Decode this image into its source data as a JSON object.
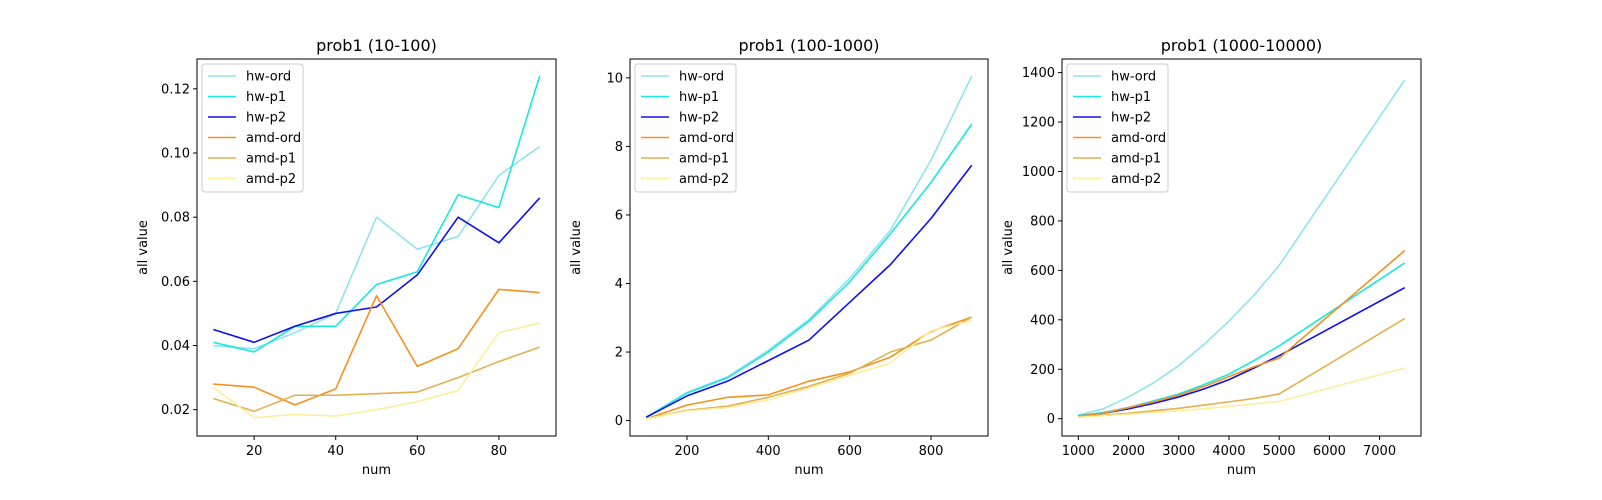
{
  "chart_data": [
    {
      "type": "line",
      "title": "prob1 (10-100)",
      "xlabel": "num",
      "ylabel": "all value",
      "xlim": [
        6,
        94
      ],
      "ylim": [
        0.0118,
        0.1293
      ],
      "xticks": [
        20,
        40,
        60,
        80
      ],
      "yticks": [
        0.02,
        0.04,
        0.06,
        0.08,
        0.1,
        0.12
      ],
      "ytick_labels": [
        "0.02",
        "0.04",
        "0.06",
        "0.08",
        "0.10",
        "0.12"
      ],
      "grid": false,
      "legend": "top-left",
      "x": [
        10,
        20,
        30,
        40,
        50,
        60,
        70,
        80,
        90
      ],
      "series": [
        {
          "name": "hw-ord",
          "color": "#8fe3ef",
          "values": [
            0.04,
            0.039,
            0.044,
            0.05,
            0.08,
            0.07,
            0.074,
            0.093,
            0.102
          ]
        },
        {
          "name": "hw-p1",
          "color": "#1ae8e0",
          "values": [
            0.041,
            0.038,
            0.046,
            0.046,
            0.059,
            0.063,
            0.087,
            0.083,
            0.124
          ]
        },
        {
          "name": "hw-p2",
          "color": "#1010ee",
          "values": [
            0.045,
            0.041,
            0.046,
            0.05,
            0.052,
            0.062,
            0.08,
            0.072,
            0.086
          ]
        },
        {
          "name": "amd-ord",
          "color": "#f5921e",
          "values": [
            0.028,
            0.027,
            0.0215,
            0.0265,
            0.0555,
            0.0335,
            0.039,
            0.0575,
            0.0565
          ]
        },
        {
          "name": "amd-p1",
          "color": "#e3b050",
          "values": [
            0.0235,
            0.0195,
            0.0245,
            0.0245,
            0.025,
            0.0255,
            0.03,
            0.035,
            0.0395
          ]
        },
        {
          "name": "amd-p2",
          "color": "#fdee9c",
          "values": [
            0.027,
            0.0175,
            0.0185,
            0.018,
            0.02,
            0.0225,
            0.026,
            0.044,
            0.047
          ]
        }
      ]
    },
    {
      "type": "line",
      "title": "prob1 (100-1000)",
      "xlabel": "num",
      "ylabel": "all value",
      "xlim": [
        60,
        940
      ],
      "ylim": [
        -0.45,
        10.55
      ],
      "xticks": [
        200,
        400,
        600,
        800
      ],
      "yticks": [
        0,
        2,
        4,
        6,
        8,
        10
      ],
      "ytick_labels": [
        "0",
        "2",
        "4",
        "6",
        "8",
        "10"
      ],
      "grid": false,
      "legend": "top-left",
      "x": [
        100,
        200,
        300,
        400,
        500,
        600,
        700,
        800,
        900
      ],
      "series": [
        {
          "name": "hw-ord",
          "color": "#8fe3ef",
          "values": [
            0.1,
            0.82,
            1.28,
            2.05,
            2.95,
            4.15,
            5.55,
            7.6,
            10.05
          ]
        },
        {
          "name": "hw-p1",
          "color": "#1ae8e0",
          "values": [
            0.1,
            0.8,
            1.25,
            2.0,
            2.9,
            4.05,
            5.45,
            6.95,
            8.65
          ]
        },
        {
          "name": "hw-p2",
          "color": "#1010ee",
          "values": [
            0.1,
            0.72,
            1.15,
            1.75,
            2.35,
            3.45,
            4.55,
            5.9,
            7.45
          ]
        },
        {
          "name": "amd-ord",
          "color": "#f5921e",
          "values": [
            0.05,
            0.45,
            0.68,
            0.75,
            1.15,
            1.42,
            1.85,
            2.6,
            3.02
          ]
        },
        {
          "name": "amd-p1",
          "color": "#e3b050",
          "values": [
            0.05,
            0.3,
            0.42,
            0.68,
            1.0,
            1.38,
            2.0,
            2.35,
            3.02
          ]
        },
        {
          "name": "amd-p2",
          "color": "#fdee9c",
          "values": [
            0.05,
            0.28,
            0.38,
            0.6,
            0.95,
            1.32,
            1.68,
            2.62,
            2.92
          ]
        }
      ]
    },
    {
      "type": "line",
      "title": "prob1 (1000-10000)",
      "xlabel": "num",
      "ylabel": "all value",
      "xlim": [
        675,
        7825
      ],
      "ylim": [
        -70,
        1455
      ],
      "xticks": [
        1000,
        2000,
        3000,
        4000,
        5000,
        6000,
        7000
      ],
      "yticks": [
        0,
        200,
        400,
        600,
        800,
        1000,
        1200,
        1400
      ],
      "ytick_labels": [
        "0",
        "200",
        "400",
        "600",
        "800",
        "1000",
        "1200",
        "1400"
      ],
      "grid": false,
      "legend": "top-left",
      "x": [
        1000,
        1500,
        2000,
        2500,
        3000,
        3500,
        4000,
        4500,
        5000,
        7500
      ],
      "series": [
        {
          "name": "hw-ord",
          "color": "#8fe3ef",
          "values": [
            15,
            40,
            88,
            145,
            215,
            300,
            395,
            500,
            620,
            1370
          ]
        },
        {
          "name": "hw-p1",
          "color": "#1ae8e0",
          "values": [
            12,
            25,
            45,
            72,
            100,
            138,
            180,
            235,
            295,
            630
          ]
        },
        {
          "name": "hw-p2",
          "color": "#1010ee",
          "values": [
            10,
            22,
            40,
            62,
            88,
            120,
            158,
            205,
            255,
            530
          ]
        },
        {
          "name": "amd-ord",
          "color": "#f5921e",
          "values": [
            10,
            22,
            45,
            68,
            95,
            130,
            170,
            210,
            245,
            680
          ]
        },
        {
          "name": "amd-p1",
          "color": "#e3b050",
          "values": [
            8,
            15,
            22,
            32,
            42,
            55,
            68,
            82,
            100,
            405
          ]
        },
        {
          "name": "amd-p2",
          "color": "#fdee9c",
          "values": [
            5,
            12,
            18,
            25,
            32,
            40,
            50,
            60,
            70,
            205
          ]
        }
      ]
    }
  ]
}
